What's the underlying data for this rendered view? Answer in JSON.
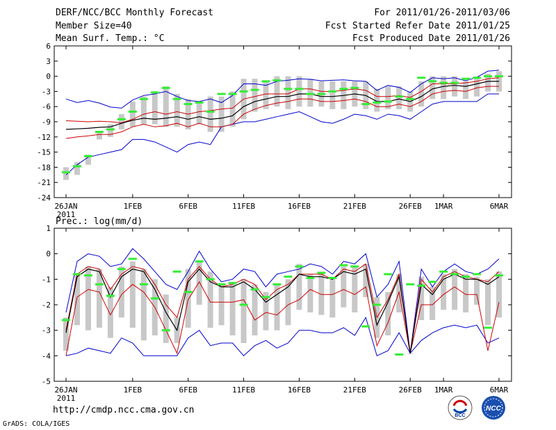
{
  "header": {
    "left": [
      "DERF/NCC/BCC Monthly Forecast",
      "Member Size=40",
      "Mean Surf. Temp.: °C"
    ],
    "right": [
      "For 2011/01/26-2011/03/06",
      "Fcst Started Refer Date 2011/01/25",
      "Fcst Produced Date 2011/01/26"
    ]
  },
  "footer": {
    "url": "http://cmdp.ncc.cma.gov.cn",
    "credit": "GrADS: COLA/IGES"
  },
  "logos": {
    "bcc": "BCC",
    "ncc": "NCC"
  },
  "colors": {
    "envelope": "#0000cc",
    "spread": "#cc0000",
    "mean": "#000000",
    "box": "#c8c8c8",
    "observed": "#33ee33"
  },
  "chart_data": [
    {
      "type": "line",
      "title": "Mean Surf. Temp.: °C",
      "ylim": [
        -24,
        6
      ],
      "yticks": [
        6,
        3,
        0,
        -3,
        -6,
        -9,
        -12,
        -15,
        -18,
        -21,
        -24
      ],
      "xticks": [
        {
          "i": 0,
          "label": "26JAN",
          "sub": "2011"
        },
        {
          "i": 6,
          "label": "1FEB"
        },
        {
          "i": 11,
          "label": "6FEB"
        },
        {
          "i": 16,
          "label": "11FEB"
        },
        {
          "i": 21,
          "label": "16FEB"
        },
        {
          "i": 26,
          "label": "21FEB"
        },
        {
          "i": 31,
          "label": "26FEB"
        },
        {
          "i": 34,
          "label": "1MAR"
        },
        {
          "i": 39,
          "label": "6MAR"
        }
      ],
      "days": 40,
      "series": [
        {
          "name": "max",
          "values": [
            -4.5,
            -5.2,
            -4.8,
            -5.3,
            -6.1,
            -6.3,
            -4.7,
            -3.8,
            -3.5,
            -3.0,
            -4.0,
            -4.8,
            -5.0,
            -4.5,
            -5.2,
            -3.8,
            -1.5,
            -1.5,
            -1.8,
            -1.0,
            -0.8,
            -0.5,
            -0.6,
            -0.9,
            -0.8,
            -0.7,
            -0.9,
            -1.0,
            -2.8,
            -1.8,
            -2.2,
            -3.2,
            -1.5,
            -0.3,
            -0.5,
            -0.3,
            -0.9,
            -0.2,
            1.0,
            1.2
          ]
        },
        {
          "name": "upper",
          "values": [
            -8.8,
            -8.9,
            -9.0,
            -8.9,
            -9.0,
            -9.2,
            -8.5,
            -7.5,
            -7.0,
            -7.5,
            -7.0,
            -7.5,
            -7.0,
            -6.8,
            -6.5,
            -6.3,
            -4.5,
            -4.0,
            -3.5,
            -3.5,
            -3.5,
            -2.5,
            -2.5,
            -3.0,
            -3.0,
            -2.8,
            -2.5,
            -2.8,
            -4.0,
            -4.0,
            -3.8,
            -4.2,
            -3.0,
            -1.5,
            -1.5,
            -1.5,
            -1.3,
            -1.0,
            -0.5,
            -0.3
          ]
        },
        {
          "name": "mean",
          "values": [
            -10.5,
            -10.4,
            -10.3,
            -10.1,
            -10.0,
            -9.3,
            -8.7,
            -8.3,
            -8.5,
            -8.3,
            -8.0,
            -8.5,
            -8.0,
            -8.5,
            -8.3,
            -7.8,
            -6.0,
            -5.0,
            -4.5,
            -4.0,
            -4.0,
            -3.5,
            -3.5,
            -4.0,
            -4.0,
            -3.8,
            -3.5,
            -3.8,
            -5.0,
            -5.0,
            -4.5,
            -5.0,
            -4.0,
            -2.5,
            -2.0,
            -1.8,
            -2.0,
            -1.5,
            -1.0,
            -1.0
          ]
        },
        {
          "name": "lower",
          "values": [
            -12.3,
            -12.0,
            -11.8,
            -11.5,
            -11.5,
            -11.0,
            -10.0,
            -9.5,
            -10.0,
            -9.8,
            -9.3,
            -10.0,
            -9.3,
            -10.0,
            -10.0,
            -9.5,
            -7.5,
            -6.5,
            -5.8,
            -5.3,
            -5.0,
            -4.5,
            -4.5,
            -5.0,
            -5.0,
            -4.8,
            -4.5,
            -5.0,
            -6.0,
            -6.0,
            -5.5,
            -6.0,
            -5.0,
            -3.5,
            -3.0,
            -2.8,
            -3.0,
            -2.3,
            -2.0,
            -2.0
          ]
        },
        {
          "name": "min",
          "values": [
            -19.5,
            -17.5,
            -16.0,
            -15.5,
            -15.0,
            -14.5,
            -12.5,
            -12.5,
            -13.0,
            -14.0,
            -15.0,
            -13.5,
            -13.0,
            -13.5,
            -10.0,
            -9.5,
            -9.0,
            -9.0,
            -8.5,
            -8.0,
            -7.5,
            -7.0,
            -8.0,
            -9.0,
            -9.3,
            -8.5,
            -7.5,
            -7.8,
            -8.5,
            -7.5,
            -7.8,
            -8.5,
            -7.0,
            -5.5,
            -5.0,
            -5.0,
            -5.0,
            -5.0,
            -3.5,
            -3.5
          ]
        },
        {
          "name": "box_top",
          "values": [
            -18,
            -17,
            -15.5,
            -11,
            -9.5,
            -7.5,
            -5,
            -4,
            -3,
            -2,
            -3.5,
            -4.5,
            -5,
            -4,
            -4,
            -3,
            -0.5,
            -0.5,
            -1,
            0,
            0,
            0,
            -0.5,
            -1,
            -1,
            -1,
            -1,
            -1,
            -2.5,
            -2,
            -2,
            -3,
            -1,
            0,
            0,
            0,
            -1,
            0,
            0.5,
            1
          ]
        },
        {
          "name": "box_bottom",
          "values": [
            -20.5,
            -19.5,
            -17.5,
            -12.5,
            -12,
            -10.5,
            -10,
            -9.5,
            -9.5,
            -10,
            -10,
            -10.5,
            -9.5,
            -11,
            -11,
            -10,
            -8.5,
            -7,
            -6.5,
            -6,
            -6.5,
            -6,
            -6,
            -6,
            -6.5,
            -6.5,
            -6,
            -6.5,
            -7,
            -6.5,
            -6.5,
            -7,
            -6,
            -4.5,
            -4.5,
            -4,
            -4.5,
            -4,
            -3,
            -3
          ]
        },
        {
          "name": "observed",
          "values": [
            -19,
            -17.8,
            -15.8,
            -11,
            -10.5,
            -8.5,
            -7,
            -4.5,
            -3.2,
            -2.3,
            -4.5,
            -5.5,
            -5.2,
            -7,
            -3.5,
            -3.5,
            -3,
            -2.7,
            -1,
            -0.8,
            -2.5,
            -2.5,
            -3.5,
            -3.5,
            -3,
            -2.5,
            -2.3,
            -5.5,
            -5.2,
            -5,
            -4,
            -4.5,
            -0.3,
            -1,
            -1.3,
            -1.3,
            -0.5,
            -0.3,
            0,
            0
          ]
        }
      ]
    },
    {
      "type": "line",
      "title": "Prec.: log(mm/d)",
      "ylim": [
        -5,
        1
      ],
      "yticks": [
        1,
        0,
        -1,
        -2,
        -3,
        -4,
        -5
      ],
      "xticks": [
        {
          "i": 0,
          "label": "26JAN",
          "sub": "2011"
        },
        {
          "i": 6,
          "label": "1FEB"
        },
        {
          "i": 11,
          "label": "6FEB"
        },
        {
          "i": 16,
          "label": "11FEB"
        },
        {
          "i": 21,
          "label": "16FEB"
        },
        {
          "i": 26,
          "label": "21FEB"
        },
        {
          "i": 31,
          "label": "26FEB"
        },
        {
          "i": 34,
          "label": "1MAR"
        },
        {
          "i": 39,
          "label": "6MAR"
        }
      ],
      "days": 40,
      "series": [
        {
          "name": "max",
          "values": [
            -2.3,
            -0.3,
            0.0,
            -0.1,
            -0.5,
            -0.4,
            0.2,
            -0.2,
            -0.7,
            -1.2,
            -1.4,
            -0.7,
            0.1,
            -0.6,
            -1.1,
            -1.0,
            -0.6,
            -0.7,
            -1.3,
            -0.8,
            -0.7,
            -0.6,
            -0.4,
            -0.5,
            -0.8,
            -0.3,
            -0.4,
            0.0,
            -1.7,
            -1.2,
            -0.3,
            -3.9,
            -0.6,
            -1.3,
            -0.7,
            -0.4,
            -0.7,
            -0.8,
            -0.6,
            -0.2
          ]
        },
        {
          "name": "upper",
          "values": [
            -3.0,
            -0.8,
            -0.5,
            -0.6,
            -1.4,
            -0.8,
            -0.5,
            -0.6,
            -1.2,
            -2.0,
            -2.5,
            -1.0,
            -0.5,
            -1.0,
            -1.3,
            -1.2,
            -1.0,
            -1.2,
            -1.8,
            -1.4,
            -1.2,
            -0.8,
            -0.8,
            -0.8,
            -1.0,
            -0.6,
            -0.7,
            -0.4,
            -2.5,
            -1.8,
            -0.8,
            -3.9,
            -1.0,
            -1.5,
            -0.9,
            -0.7,
            -0.9,
            -1.0,
            -1.1,
            -0.7
          ]
        },
        {
          "name": "mean",
          "values": [
            -3.1,
            -0.9,
            -0.6,
            -0.7,
            -1.7,
            -0.9,
            -0.6,
            -0.7,
            -1.4,
            -2.3,
            -3.0,
            -1.1,
            -0.6,
            -1.1,
            -1.3,
            -1.3,
            -1.1,
            -1.4,
            -1.9,
            -1.6,
            -1.3,
            -0.8,
            -0.9,
            -0.9,
            -1.0,
            -0.7,
            -0.8,
            -0.6,
            -2.8,
            -1.9,
            -0.9,
            -3.9,
            -1.2,
            -1.6,
            -1.0,
            -0.8,
            -1.0,
            -1.0,
            -1.2,
            -0.9
          ]
        },
        {
          "name": "lower",
          "values": [
            -4.0,
            -1.7,
            -1.4,
            -1.5,
            -2.4,
            -1.6,
            -1.2,
            -1.5,
            -2.1,
            -3.0,
            -3.9,
            -1.8,
            -1.1,
            -1.9,
            -1.9,
            -1.9,
            -1.8,
            -2.6,
            -2.3,
            -2.4,
            -2.0,
            -1.8,
            -1.4,
            -1.6,
            -1.6,
            -1.4,
            -1.6,
            -1.3,
            -3.6,
            -2.7,
            -1.5,
            -3.9,
            -2.0,
            -2.0,
            -1.6,
            -1.3,
            -1.6,
            -1.6,
            -3.8,
            -1.9
          ]
        },
        {
          "name": "min",
          "values": [
            -4.0,
            -3.9,
            -3.7,
            -3.8,
            -3.9,
            -3.3,
            -3.5,
            -4.0,
            -4.0,
            -4.0,
            -4.0,
            -3.3,
            -3.0,
            -3.6,
            -3.5,
            -3.5,
            -4.0,
            -3.6,
            -3.4,
            -3.7,
            -3.5,
            -3.0,
            -3.0,
            -3.1,
            -3.1,
            -2.9,
            -3.2,
            -2.5,
            -4.0,
            -3.8,
            -3.1,
            -3.9,
            -3.4,
            -3.1,
            -2.9,
            -2.8,
            -2.9,
            -2.8,
            -3.5,
            -3.3
          ]
        },
        {
          "name": "box_top",
          "values": [
            -2.5,
            -0.8,
            -0.5,
            -0.6,
            -1.3,
            -0.5,
            -0.3,
            -0.6,
            -1.0,
            -1.6,
            -2.5,
            -0.6,
            -0.3,
            -0.7,
            -1.2,
            -1.1,
            -1.0,
            -1.2,
            -1.5,
            -1.2,
            -1.0,
            -0.4,
            -0.8,
            -0.7,
            -0.9,
            -0.5,
            -0.5,
            -0.4,
            -1.7,
            -1.5,
            -0.8,
            -3.9,
            -0.9,
            -1.3,
            -0.8,
            -0.6,
            -0.8,
            -0.9,
            -1.0,
            -0.7
          ]
        },
        {
          "name": "box_bottom",
          "values": [
            -3.8,
            -2.8,
            -3.0,
            -2.9,
            -3.3,
            -2.5,
            -2.9,
            -3.4,
            -3.2,
            -3.5,
            -3.5,
            -2.9,
            -2.0,
            -2.9,
            -2.8,
            -3.2,
            -3.5,
            -3.2,
            -3.0,
            -3.0,
            -2.8,
            -2.2,
            -2.3,
            -2.4,
            -2.5,
            -2.1,
            -2.3,
            -1.7,
            -3.3,
            -3.2,
            -2.3,
            -3.9,
            -2.6,
            -2.6,
            -2.2,
            -2.2,
            -2.3,
            -2.0,
            -2.8,
            -2.5
          ]
        },
        {
          "name": "observed",
          "values": [
            -2.6,
            -0.8,
            -0.85,
            -1.2,
            -1.65,
            -0.6,
            -0.2,
            -1.2,
            -1.75,
            -3.0,
            -0.7,
            -1.5,
            -0.3,
            -1.0,
            -1.2,
            -1.15,
            -2.0,
            -1.4,
            -1.7,
            -1.2,
            -0.9,
            -0.5,
            -0.95,
            -0.75,
            -0.95,
            -0.45,
            -0.5,
            -2.85,
            -2.0,
            -0.8,
            -3.95,
            -1.2,
            -1.25,
            -1.1,
            -0.7,
            -0.8,
            -0.9,
            -0.8,
            -2.9,
            -0.85
          ]
        }
      ]
    }
  ]
}
